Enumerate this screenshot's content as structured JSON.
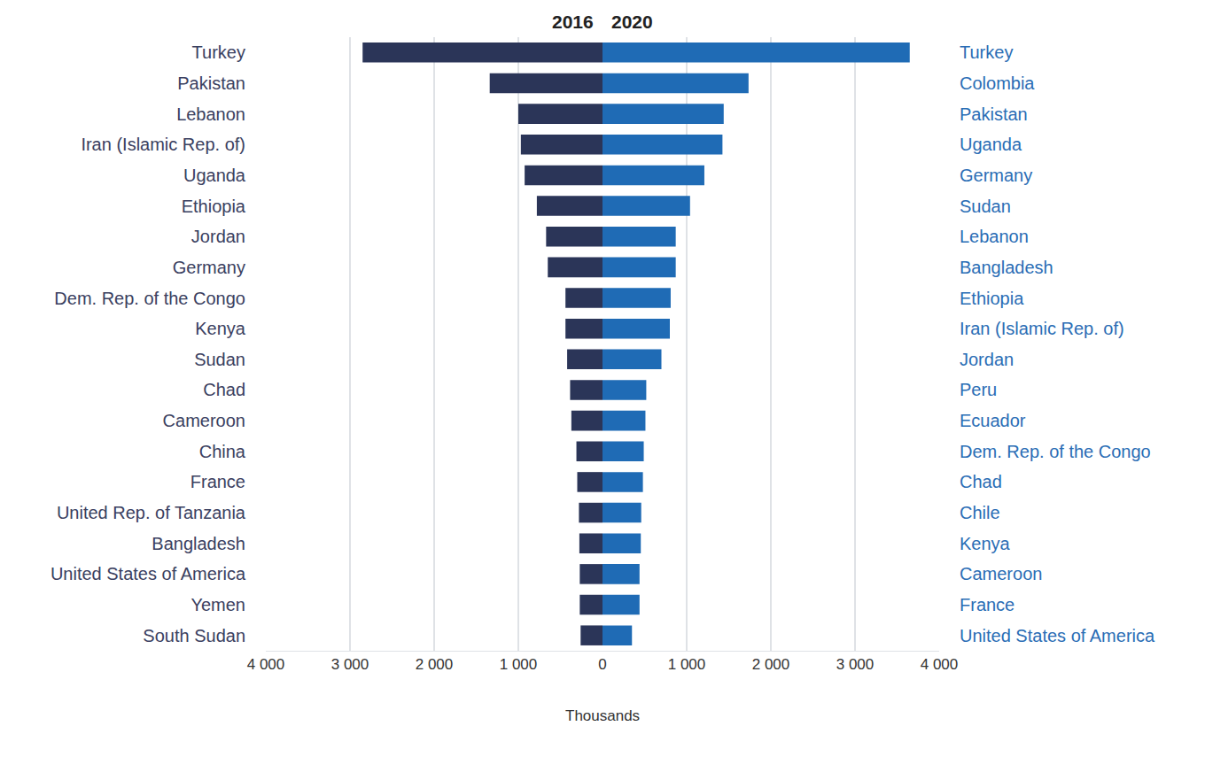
{
  "chart_data": {
    "type": "bar",
    "orientation": "horizontal",
    "grid": true,
    "x_label": "Thousands",
    "xlim": [
      0,
      4000
    ],
    "xticks": [
      0,
      {
        "value": 1000,
        "label": "1 000"
      },
      {
        "value": 2000,
        "label": "2 000"
      },
      {
        "value": 3000,
        "label": "3 000"
      },
      {
        "value": 4000,
        "label": "4 000"
      }
    ],
    "series": [
      {
        "name": "2016",
        "color": "#2b3558",
        "categories": [
          "Turkey",
          "Pakistan",
          "Lebanon",
          "Iran (Islamic Rep. of)",
          "Uganda",
          "Ethiopia",
          "Jordan",
          "Germany",
          "Dem. Rep. of the Congo",
          "Kenya",
          "Sudan",
          "Chad",
          "Cameroon",
          "China",
          "France",
          "United Rep. of Tanzania",
          "Bangladesh",
          "United States of America",
          "Yemen",
          "South Sudan"
        ],
        "values": [
          2850,
          1340,
          1000,
          970,
          925,
          780,
          670,
          650,
          440,
          440,
          420,
          385,
          370,
          310,
          300,
          280,
          275,
          270,
          270,
          260
        ]
      },
      {
        "name": "2020",
        "color": "#1f6bb5",
        "categories": [
          "Turkey",
          "Colombia",
          "Pakistan",
          "Uganda",
          "Germany",
          "Sudan",
          "Lebanon",
          "Bangladesh",
          "Ethiopia",
          "Iran (Islamic Rep. of)",
          "Jordan",
          "Peru",
          "Ecuador",
          "Dem. Rep. of the Congo",
          "Chad",
          "Chile",
          "Kenya",
          "Cameroon",
          "France",
          "United States of America"
        ],
        "values": [
          3650,
          1735,
          1440,
          1425,
          1210,
          1040,
          870,
          870,
          810,
          800,
          700,
          520,
          510,
          490,
          480,
          460,
          455,
          440,
          440,
          350
        ]
      }
    ]
  }
}
